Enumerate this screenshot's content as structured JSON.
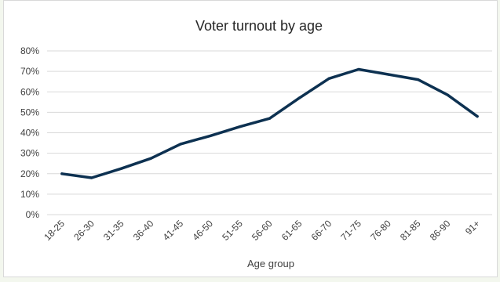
{
  "chart_data": {
    "type": "line",
    "title": "Voter turnout by age",
    "xlabel": "Age group",
    "ylabel": "",
    "categories": [
      "18-25",
      "26-30",
      "31-35",
      "36-40",
      "41-45",
      "46-50",
      "51-55",
      "56-60",
      "61-65",
      "66-70",
      "71-75",
      "76-80",
      "81-85",
      "86-90",
      "91+"
    ],
    "series": [
      {
        "name": "",
        "values": [
          20,
          18,
          22.5,
          27.5,
          34.5,
          38.5,
          43,
          47,
          57,
          66.5,
          71,
          68.5,
          66,
          58.5,
          48
        ]
      }
    ],
    "ylim": [
      0,
      80
    ],
    "yticks": [
      0,
      10,
      20,
      30,
      40,
      50,
      60,
      70,
      80
    ],
    "ytick_labels": [
      "0%",
      "10%",
      "20%",
      "30%",
      "40%",
      "50%",
      "60%",
      "70%",
      "80%"
    ],
    "grid": true,
    "legend": "none",
    "line_color": "#0d3151",
    "grid_color": "#d9d9d9"
  }
}
